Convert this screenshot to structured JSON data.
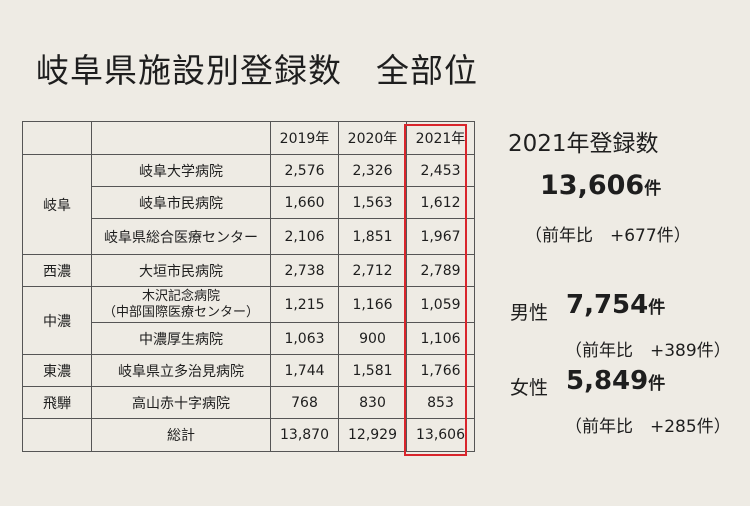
{
  "title": "岐阜県施設別登録数　全部位",
  "table": {
    "headers": [
      "",
      "",
      "2019年",
      "2020年",
      "2021年"
    ],
    "regions": {
      "gifu": "岐阜",
      "seino": "西濃",
      "chuno": "中濃",
      "tono": "東濃",
      "hida": "飛騨"
    },
    "rows": [
      {
        "hospital": "岐阜大学病院",
        "y2019": "2,576",
        "y2020": "2,326",
        "y2021": "2,453"
      },
      {
        "hospital": "岐阜市民病院",
        "y2019": "1,660",
        "y2020": "1,563",
        "y2021": "1,612"
      },
      {
        "hospital": "岐阜県総合医療センター",
        "y2019": "2,106",
        "y2020": "1,851",
        "y2021": "1,967"
      },
      {
        "hospital": "大垣市民病院",
        "y2019": "2,738",
        "y2020": "2,712",
        "y2021": "2,789"
      },
      {
        "hospital": "木沢記念病院",
        "hospital_sub": "（中部国際医療センター）",
        "y2019": "1,215",
        "y2020": "1,166",
        "y2021": "1,059"
      },
      {
        "hospital": "中濃厚生病院",
        "y2019": "1,063",
        "y2020": "900",
        "y2021": "1,106"
      },
      {
        "hospital": "岐阜県立多治見病院",
        "y2019": "1,744",
        "y2020": "1,581",
        "y2021": "1,766"
      },
      {
        "hospital": "高山赤十字病院",
        "y2019": "768",
        "y2020": "830",
        "y2021": "853"
      }
    ],
    "total": {
      "label": "総計",
      "y2019": "13,870",
      "y2020": "12,929",
      "y2021": "13,606"
    },
    "highlight_color": "#d9252c"
  },
  "summary": {
    "year_title": "2021年登録数",
    "total_value": "13,606",
    "unit": "件",
    "total_yoy": "（前年比　+677件）",
    "male_label": "男性",
    "male_value": "7,754",
    "male_yoy": "（前年比　+389件）",
    "female_label": "女性",
    "female_value": "5,849",
    "female_yoy": "（前年比　+285件）"
  }
}
